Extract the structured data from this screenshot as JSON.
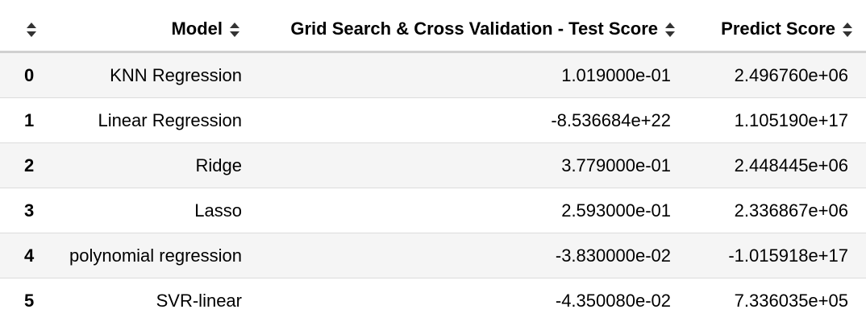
{
  "table": {
    "columns": [
      {
        "label": ""
      },
      {
        "label": "Model"
      },
      {
        "label": "Grid Search & Cross Validation - Test Score"
      },
      {
        "label": "Predict Score"
      }
    ],
    "sort_icon": "sort-updown-icon",
    "rows": [
      {
        "index": "0",
        "model": "KNN Regression",
        "test_score": "1.019000e-01",
        "predict_score": "2.496760e+06"
      },
      {
        "index": "1",
        "model": "Linear Regression",
        "test_score": "-8.536684e+22",
        "predict_score": "1.105190e+17"
      },
      {
        "index": "2",
        "model": "Ridge",
        "test_score": "3.779000e-01",
        "predict_score": "2.448445e+06"
      },
      {
        "index": "3",
        "model": "Lasso",
        "test_score": "2.593000e-01",
        "predict_score": "2.336867e+06"
      },
      {
        "index": "4",
        "model": "polynomial regression",
        "test_score": "-3.830000e-02",
        "predict_score": "-1.015918e+17"
      },
      {
        "index": "5",
        "model": "SVR-linear",
        "test_score": "-4.350080e-02",
        "predict_score": "7.336035e+05"
      }
    ]
  },
  "colors": {
    "row_stripe": "#f5f5f5",
    "header_border": "#d0d0d0",
    "row_border": "#dcdcdc",
    "sort_icon": "#333333"
  }
}
